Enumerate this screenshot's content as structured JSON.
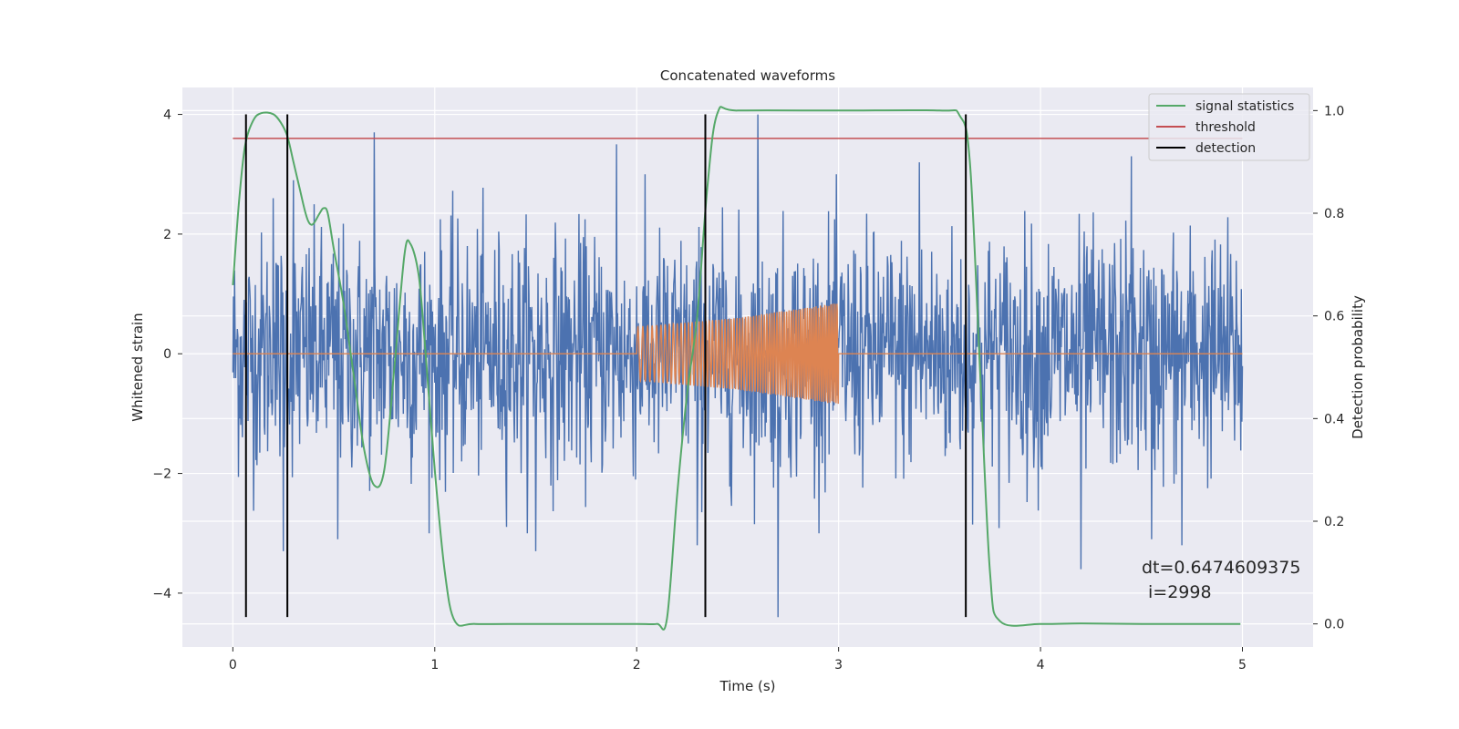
{
  "chart_data": {
    "type": "line",
    "title": "Concatenated waveforms",
    "xlabel": "Time (s)",
    "ylabel": "Whitened strain",
    "ylabel_right": "Detection probability",
    "xlim": [
      -0.25,
      5.35
    ],
    "ylim": [
      -4.9,
      4.45
    ],
    "ylim_right": [
      -0.045,
      1.045
    ],
    "xticks": [
      0,
      1,
      2,
      3,
      4,
      5
    ],
    "yticks": [
      -4,
      -2,
      0,
      2,
      4
    ],
    "yticks_right": [
      0.0,
      0.2,
      0.4,
      0.6,
      0.8,
      1.0
    ],
    "xtick_labels": [
      "0",
      "1",
      "2",
      "3",
      "4",
      "5"
    ],
    "ytick_labels": [
      "−4",
      "−2",
      "0",
      "2",
      "4"
    ],
    "ytick_right_labels": [
      "0.0",
      "0.2",
      "0.4",
      "0.6",
      "0.8",
      "1.0"
    ],
    "grid": true,
    "legend_position": "top-right",
    "legend": [
      "signal statistics",
      "threshold",
      "detection"
    ],
    "colors": {
      "background": "#eaeaf2",
      "grid": "#ffffff",
      "strain": "#4c72b0",
      "injection": "#dd8452",
      "signal_statistics": "#55a868",
      "threshold": "#c44e52",
      "detection": "#000000"
    },
    "series": [
      {
        "name": "strain",
        "axis": "left",
        "x_range": [
          0,
          5
        ],
        "amplitude_typical": 1.0,
        "peaks": [
          {
            "x": 0.2,
            "y": 2.6
          },
          {
            "x": 0.25,
            "y": -3.3
          },
          {
            "x": 0.3,
            "y": 2.9
          },
          {
            "x": 0.52,
            "y": -3.1
          },
          {
            "x": 0.7,
            "y": 3.7
          },
          {
            "x": 1.5,
            "y": -3.3
          },
          {
            "x": 1.9,
            "y": 3.5
          },
          {
            "x": 2.3,
            "y": -3.2
          },
          {
            "x": 2.6,
            "y": 4.0
          },
          {
            "x": 2.7,
            "y": -4.4
          },
          {
            "x": 3.4,
            "y": 3.2
          },
          {
            "x": 4.2,
            "y": -3.6
          },
          {
            "x": 4.45,
            "y": 3.3
          },
          {
            "x": 4.55,
            "y": -3.1
          },
          {
            "x": 4.7,
            "y": -3.2
          }
        ]
      },
      {
        "name": "injection",
        "axis": "left",
        "x": [
          0,
          2.0,
          2.0,
          2.5,
          3.0,
          3.0,
          5.0
        ],
        "envelope": [
          0,
          0,
          0.45,
          0.6,
          0.85,
          0,
          0
        ]
      },
      {
        "name": "signal statistics",
        "axis": "right",
        "x": [
          0,
          0.03,
          0.06,
          0.1,
          0.14,
          0.2,
          0.24,
          0.27,
          0.3,
          0.33,
          0.36,
          0.38,
          0.4,
          0.43,
          0.45,
          0.47,
          0.5,
          0.55,
          0.6,
          0.65,
          0.7,
          0.75,
          0.8,
          0.85,
          0.88,
          0.92,
          0.95,
          1.0,
          1.05,
          1.1,
          1.2,
          1.5,
          2.0,
          2.1,
          2.15,
          2.2,
          2.25,
          2.3,
          2.35,
          2.4,
          2.5,
          3.0,
          3.5,
          3.6,
          3.65,
          3.7,
          3.75,
          3.8,
          4.0,
          4.2,
          4.5,
          4.99
        ],
        "y": [
          0.66,
          0.82,
          0.93,
          0.98,
          0.995,
          0.993,
          0.975,
          0.95,
          0.9,
          0.85,
          0.8,
          0.78,
          0.78,
          0.8,
          0.81,
          0.8,
          0.73,
          0.62,
          0.48,
          0.34,
          0.27,
          0.3,
          0.5,
          0.72,
          0.74,
          0.68,
          0.55,
          0.3,
          0.1,
          0.005,
          0.0,
          0.0,
          0.0,
          0.0,
          0.01,
          0.25,
          0.45,
          0.6,
          0.85,
          0.995,
          1.0,
          1.0,
          1.0,
          0.99,
          0.9,
          0.5,
          0.1,
          0.005,
          0.0,
          0.001,
          0.0,
          0.0
        ]
      },
      {
        "name": "threshold",
        "axis": "left",
        "x": [
          0,
          5
        ],
        "y": [
          3.6,
          3.6
        ]
      },
      {
        "name": "detection",
        "axis": "left",
        "x": [
          0.065,
          0.27,
          2.34,
          3.63
        ],
        "y_range": [
          -4.4,
          4.0
        ]
      }
    ],
    "annotations": {
      "dt": "dt=0.6474609375",
      "i": "i=2998"
    }
  }
}
